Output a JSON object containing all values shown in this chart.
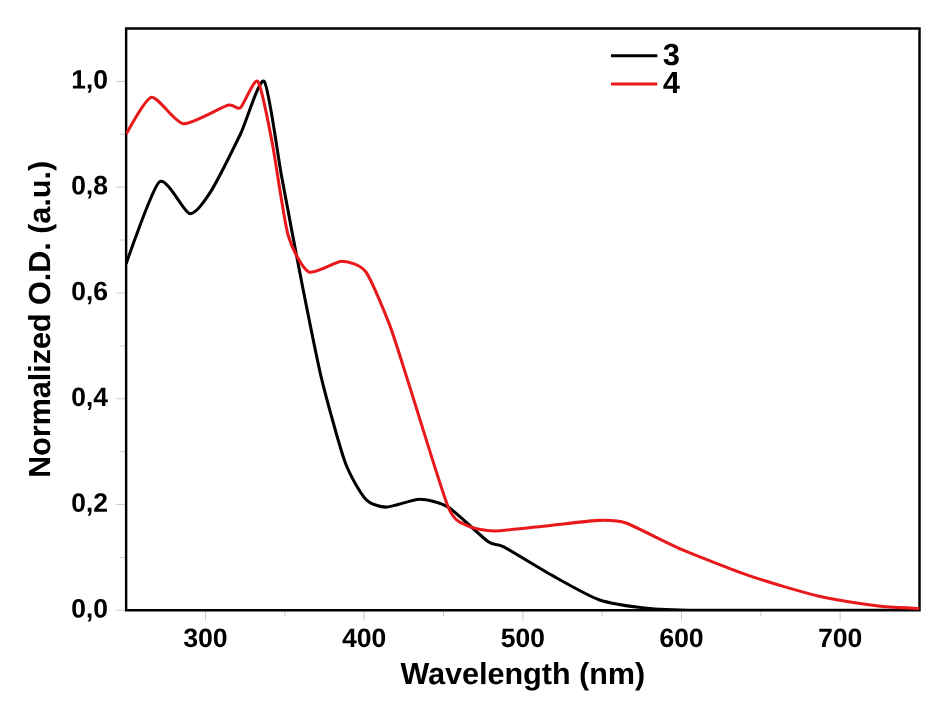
{
  "chart_data": {
    "type": "line",
    "xlabel": "Wavelength (nm)",
    "ylabel": "Normalized O.D. (a.u.)",
    "xlim": [
      250,
      750
    ],
    "ylim": [
      0,
      1.1
    ],
    "xticks": [
      300,
      400,
      500,
      600,
      700
    ],
    "yticks": [
      {
        "value": 0,
        "label": "0,0"
      },
      {
        "value": 0.2,
        "label": "0,2"
      },
      {
        "value": 0.4,
        "label": "0,4"
      },
      {
        "value": 0.6,
        "label": "0,6"
      },
      {
        "value": 0.8,
        "label": "0,8"
      },
      {
        "value": 1.0,
        "label": "1,0"
      }
    ],
    "legend": "top right",
    "grid": false,
    "series": [
      {
        "name": "3",
        "color": "#000000",
        "x": [
          250,
          271,
          290,
          303,
          322,
          337,
          348,
          360,
          373,
          388,
          401,
          414,
          435,
          453,
          478,
          488,
          519,
          548,
          578,
          610,
          650,
          700,
          750
        ],
        "values": [
          0.655,
          0.81,
          0.75,
          0.79,
          0.9,
          1.0,
          0.82,
          0.63,
          0.44,
          0.28,
          0.21,
          0.195,
          0.21,
          0.195,
          0.13,
          0.12,
          0.065,
          0.02,
          0.004,
          0,
          0,
          0,
          0
        ]
      },
      {
        "name": "4",
        "color": "#e8191b",
        "x": [
          250,
          266,
          286,
          314,
          322,
          333,
          342,
          352,
          365,
          386,
          401,
          416,
          429,
          453,
          465,
          482,
          516,
          548,
          565,
          600,
          643,
          686,
          724,
          746,
          750
        ],
        "values": [
          0.9,
          0.97,
          0.92,
          0.955,
          0.95,
          1.0,
          0.885,
          0.71,
          0.64,
          0.66,
          0.64,
          0.54,
          0.42,
          0.195,
          0.16,
          0.15,
          0.16,
          0.17,
          0.165,
          0.115,
          0.065,
          0.027,
          0.008,
          0.004,
          0.003
        ]
      }
    ]
  }
}
